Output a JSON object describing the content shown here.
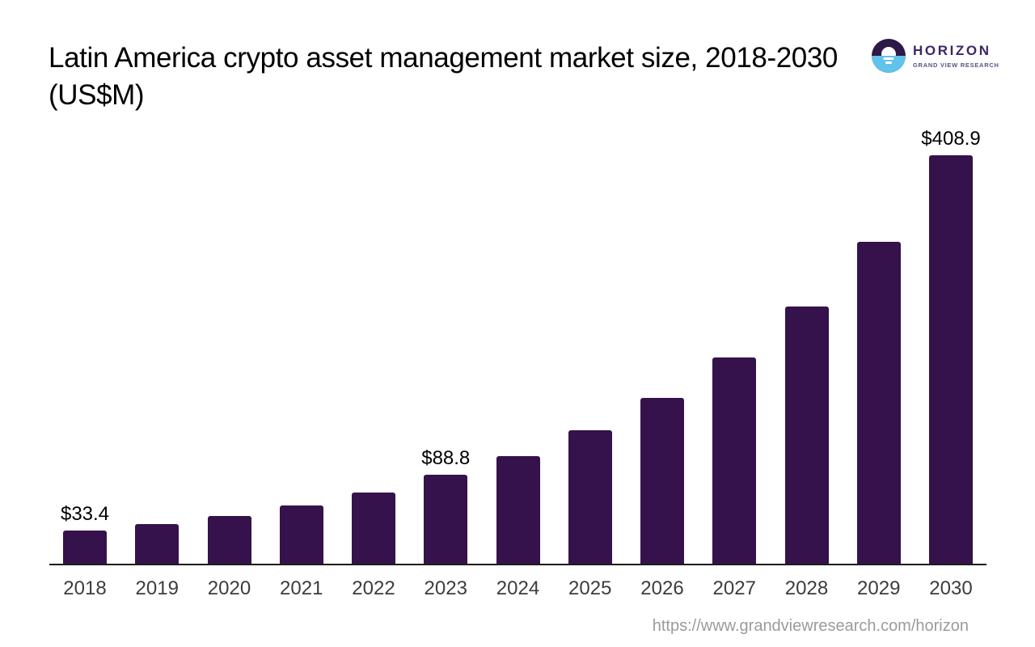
{
  "title": {
    "line1": "Latin America crypto asset management market size, 2018-2030",
    "line2": "(US$M)"
  },
  "logo": {
    "brand": "HORIZON",
    "tagline": "GRAND VIEW RESEARCH",
    "colors": {
      "circle_top": "#2c1947",
      "circle_bottom": "#62c3ea",
      "brand_text": "#3b2766"
    }
  },
  "footer": {
    "url": "https://www.grandviewresearch.com/horizon"
  },
  "chart_data": {
    "type": "bar",
    "title": "Latin America crypto asset management market size, 2018-2030 (US$M)",
    "categories": [
      "2018",
      "2019",
      "2020",
      "2021",
      "2022",
      "2023",
      "2024",
      "2025",
      "2026",
      "2027",
      "2028",
      "2029",
      "2030"
    ],
    "values": [
      33.4,
      39.4,
      47.9,
      58.6,
      71.6,
      88.8,
      107.8,
      133.6,
      166.0,
      206.5,
      257.5,
      322.3,
      408.9
    ],
    "data_labels": [
      "$33.4",
      null,
      null,
      null,
      null,
      "$88.8",
      null,
      null,
      null,
      null,
      null,
      null,
      "$408.9"
    ],
    "xlabel": "",
    "ylabel": "",
    "ylim": [
      0,
      408.9
    ],
    "grid": false,
    "legend": false,
    "bar_color": "#35124b",
    "axis_color": "#1c1c1c",
    "tick_label_color": "#3d3d3d",
    "value_label_color": "#000000"
  }
}
